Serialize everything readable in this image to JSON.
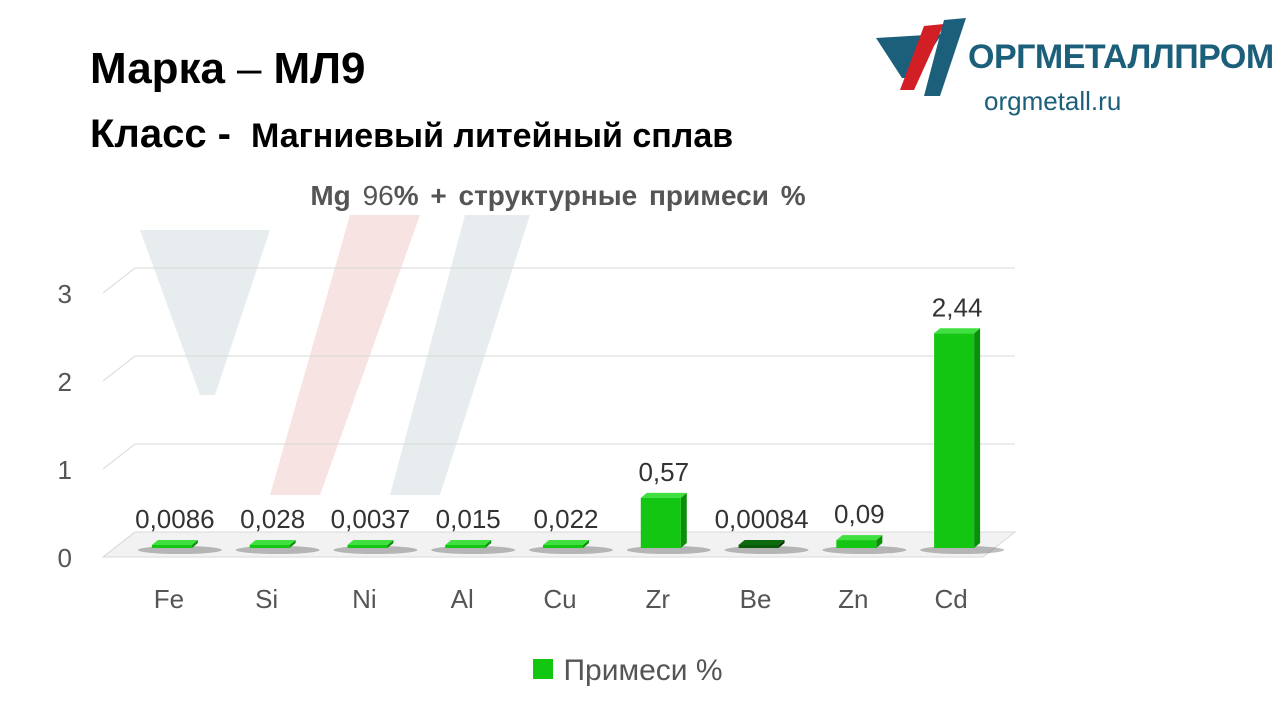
{
  "header": {
    "grade_label": "Марка",
    "grade_separator": "–",
    "grade_value": "МЛ9",
    "class_label": "Класс -",
    "class_value": "Магниевый литейный сплав"
  },
  "logo": {
    "name": "ОРГМЕТАЛЛПРОМ",
    "site": "orgmetall.ru"
  },
  "colors": {
    "bar": "#12c612",
    "bar_side": "#0b8f0b",
    "bar_dark": "#0a5a0a",
    "brand_blue": "#1c5f7a",
    "brand_red": "#d21f26"
  },
  "chart_data": {
    "type": "bar",
    "title_prefix": "Mg",
    "title_percent": "96",
    "title_suffix": "% + структурные примеси %",
    "categories": [
      "Fe",
      "Si",
      "Ni",
      "Al",
      "Cu",
      "Zr",
      "Be",
      "Zn",
      "Cd"
    ],
    "series": [
      {
        "name": "Примеси %",
        "values": [
          0.0086,
          0.028,
          0.0037,
          0.015,
          0.022,
          0.57,
          0.00084,
          0.09,
          2.44
        ],
        "labels": [
          "0,0086",
          "0,028",
          "0,0037",
          "0,015",
          "0,022",
          "0,57",
          "0,00084",
          "0,09",
          "2,44"
        ]
      }
    ],
    "yticks": [
      "0",
      "1",
      "2",
      "3"
    ],
    "ylim": [
      0,
      3
    ],
    "grid": true,
    "legend_position": "bottom"
  }
}
